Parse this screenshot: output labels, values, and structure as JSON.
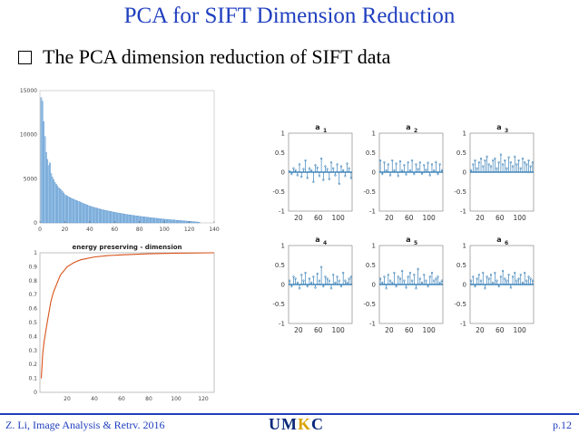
{
  "slide": {
    "title": "PCA for SIFT Dimension Reduction",
    "bullet": "The PCA dimension reduction of SIFT data",
    "footer_left": "Z. Li, Image Analysis & Retrv. 2016",
    "footer_right": "p.12",
    "logo": {
      "text": "UMKC",
      "part1": "UM",
      "part2": "K",
      "part3": "C"
    }
  },
  "colors": {
    "title": "#1f3fbf",
    "bar": "#9cc5e8",
    "line": "#d95319",
    "stem": "#1f6fad"
  },
  "chart_data": [
    {
      "type": "bar",
      "title": "",
      "xlabel": "",
      "ylabel": "",
      "xlim": [
        0,
        140
      ],
      "ylim": [
        0,
        15000
      ],
      "x_ticks": [
        "0",
        "20",
        "40",
        "60",
        "80",
        "100",
        "120",
        "140"
      ],
      "y_ticks": [
        "0",
        "5000",
        "10000",
        "15000"
      ],
      "description_points": {
        "x": [
          1,
          2,
          3,
          4,
          5,
          6,
          7,
          8,
          9,
          10,
          12,
          15,
          18,
          20,
          25,
          30,
          40,
          50,
          60,
          70,
          80,
          90,
          100,
          110,
          120,
          128
        ],
        "values": [
          14200,
          13800,
          11500,
          9800,
          8000,
          7200,
          6500,
          6800,
          5600,
          5200,
          4600,
          4000,
          3600,
          3200,
          2800,
          2500,
          1900,
          1500,
          1200,
          950,
          750,
          580,
          420,
          300,
          180,
          80
        ]
      }
    },
    {
      "type": "line",
      "title": "energy preserving - dimension",
      "xlabel": "",
      "ylabel": "",
      "xlim": [
        0,
        128
      ],
      "ylim": [
        0,
        1
      ],
      "x_ticks": [
        "20",
        "40",
        "60",
        "80",
        "100",
        "120"
      ],
      "y_ticks": [
        "0",
        "0.1",
        "0.2",
        "0.3",
        "0.4",
        "0.5",
        "0.6",
        "0.7",
        "0.8",
        "0.9",
        "1"
      ],
      "x": [
        1,
        2,
        3,
        5,
        8,
        10,
        15,
        20,
        25,
        30,
        40,
        50,
        60,
        80,
        100,
        128
      ],
      "y": [
        0.1,
        0.27,
        0.36,
        0.48,
        0.65,
        0.72,
        0.84,
        0.9,
        0.93,
        0.95,
        0.97,
        0.98,
        0.985,
        0.993,
        0.997,
        1.0
      ]
    },
    {
      "type": "stem",
      "subplots": [
        {
          "title": "a",
          "sub": "1"
        },
        {
          "title": "a",
          "sub": "2"
        },
        {
          "title": "a",
          "sub": "3"
        },
        {
          "title": "a",
          "sub": "4"
        },
        {
          "title": "a",
          "sub": "5"
        },
        {
          "title": "a",
          "sub": "6"
        }
      ],
      "xlim": [
        0,
        128
      ],
      "ylim": [
        -1,
        1
      ],
      "x_ticks": [
        "20",
        "60",
        "100"
      ],
      "y_ticks": [
        "1",
        "0.5",
        "0",
        "-0.5",
        "-1"
      ],
      "series": [
        {
          "name": "a1",
          "values": [
            0.02,
            -0.05,
            0.1,
            0.05,
            -0.08,
            0.2,
            -0.12,
            0.08,
            0.3,
            -0.15,
            0.1,
            0.05,
            -0.25,
            0.18,
            0.12,
            -0.1,
            0.35,
            -0.2,
            0.15,
            0.08,
            -0.18,
            0.25,
            0.1,
            -0.08,
            0.2,
            -0.3,
            0.15,
            0.05,
            -0.1,
            0.22,
            0.1,
            -0.15
          ]
        },
        {
          "name": "a2",
          "values": [
            0.3,
            -0.05,
            0.25,
            0.05,
            0.2,
            -0.08,
            0.3,
            0.05,
            0.22,
            -0.1,
            0.28,
            0.04,
            0.18,
            -0.06,
            0.25,
            0.05,
            0.3,
            -0.05,
            0.2,
            0.08,
            0.25,
            -0.04,
            0.18,
            0.06,
            0.24,
            -0.08,
            0.2,
            0.05,
            0.26,
            -0.05,
            0.2,
            0.05
          ]
        },
        {
          "name": "a3",
          "values": [
            0.05,
            0.2,
            0.3,
            0.1,
            0.25,
            0.35,
            0.15,
            0.3,
            0.4,
            0.2,
            0.15,
            0.3,
            0.35,
            0.1,
            0.25,
            0.45,
            0.2,
            0.3,
            0.1,
            0.38,
            0.25,
            0.15,
            0.4,
            0.2,
            0.3,
            0.1,
            0.35,
            0.25,
            0.2,
            0.3,
            0.15,
            0.25
          ]
        },
        {
          "name": "a4",
          "values": [
            0.1,
            -0.05,
            0.2,
            0.15,
            0.05,
            -0.1,
            0.25,
            0.1,
            0.3,
            -0.05,
            0.15,
            0.05,
            0.2,
            -0.08,
            0.28,
            0.1,
            0.45,
            -0.05,
            0.2,
            0.15,
            0.1,
            -0.1,
            0.25,
            0.05,
            0.2,
            0.1,
            -0.05,
            0.3,
            0.1,
            0.05,
            0.15,
            0.2
          ]
        },
        {
          "name": "a5",
          "values": [
            0.15,
            0.05,
            0.2,
            -0.1,
            0.25,
            0.1,
            0.05,
            0.3,
            -0.05,
            0.2,
            0.15,
            0.35,
            0.1,
            -0.08,
            0.2,
            0.3,
            0.1,
            0.25,
            -0.1,
            0.4,
            0.15,
            0.05,
            0.25,
            0.1,
            -0.05,
            0.2,
            0.3,
            0.1,
            0.15,
            0.2,
            0.05,
            0.1
          ]
        },
        {
          "name": "a6",
          "values": [
            0.1,
            0.2,
            -0.05,
            0.15,
            0.25,
            0.1,
            0.3,
            -0.1,
            0.2,
            0.15,
            0.25,
            0.05,
            0.3,
            0.1,
            -0.05,
            0.2,
            0.35,
            0.15,
            0.1,
            0.25,
            -0.08,
            0.2,
            0.3,
            0.1,
            0.15,
            0.25,
            0.05,
            0.3,
            0.1,
            0.2,
            0.15,
            0.1
          ]
        }
      ]
    }
  ]
}
